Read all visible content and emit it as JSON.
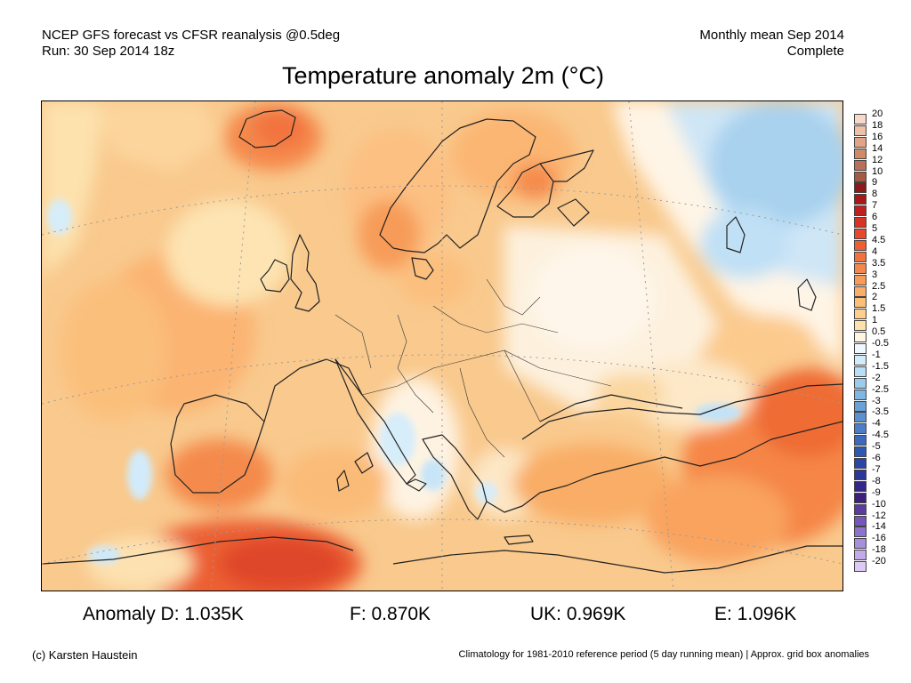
{
  "header": {
    "left_line1": "NCEP GFS forecast vs CFSR reanalysis @0.5deg",
    "left_line2": "Run: 30 Sep 2014 18z",
    "right_line1": "Monthly mean Sep 2014",
    "right_line2": "Complete"
  },
  "title": "Temperature anomaly 2m (°C)",
  "colorbar": {
    "labels": [
      "20",
      "18",
      "16",
      "14",
      "12",
      "10",
      "9",
      "8",
      "7",
      "6",
      "5",
      "4.5",
      "4",
      "3.5",
      "3",
      "2.5",
      "2",
      "1.5",
      "1",
      "0.5",
      "-0.5",
      "-1",
      "-1.5",
      "-2",
      "-2.5",
      "-3",
      "-3.5",
      "-4",
      "-4.5",
      "-5",
      "-6",
      "-7",
      "-8",
      "-9",
      "-10",
      "-12",
      "-14",
      "-16",
      "-18",
      "-20"
    ],
    "colors": [
      "#f6d9c8",
      "#eec0a8",
      "#e3a485",
      "#cf8a68",
      "#b97056",
      "#a55a44",
      "#8b1a1a",
      "#a91818",
      "#c22020",
      "#d83424",
      "#e6482c",
      "#ee5d34",
      "#f2723e",
      "#f5874a",
      "#f89b59",
      "#faae69",
      "#fbbf78",
      "#fcd08c",
      "#fde1a8",
      "#fff5e0",
      "#f0f8ff",
      "#d3ecfa",
      "#b7dff5",
      "#9ccced",
      "#80b6e2",
      "#6aa2d8",
      "#5a90cf",
      "#4b7ec6",
      "#3d6abd",
      "#2f58b2",
      "#2a46a6",
      "#2c3898",
      "#33288a",
      "#3e207c",
      "#5a3ba2",
      "#7556ba",
      "#8e73cd",
      "#a88fdc",
      "#c2abe8",
      "#dcc9f4"
    ]
  },
  "stats": {
    "anomaly_d": "Anomaly D: 1.035K",
    "f": "F: 0.870K",
    "uk": "UK: 0.969K",
    "e": "E: 1.096K"
  },
  "footer": {
    "left": "(c) Karsten Haustein",
    "right": "Climatology for 1981-2010 reference period (5 day running mean) | Approx. grid box anomalies"
  }
}
